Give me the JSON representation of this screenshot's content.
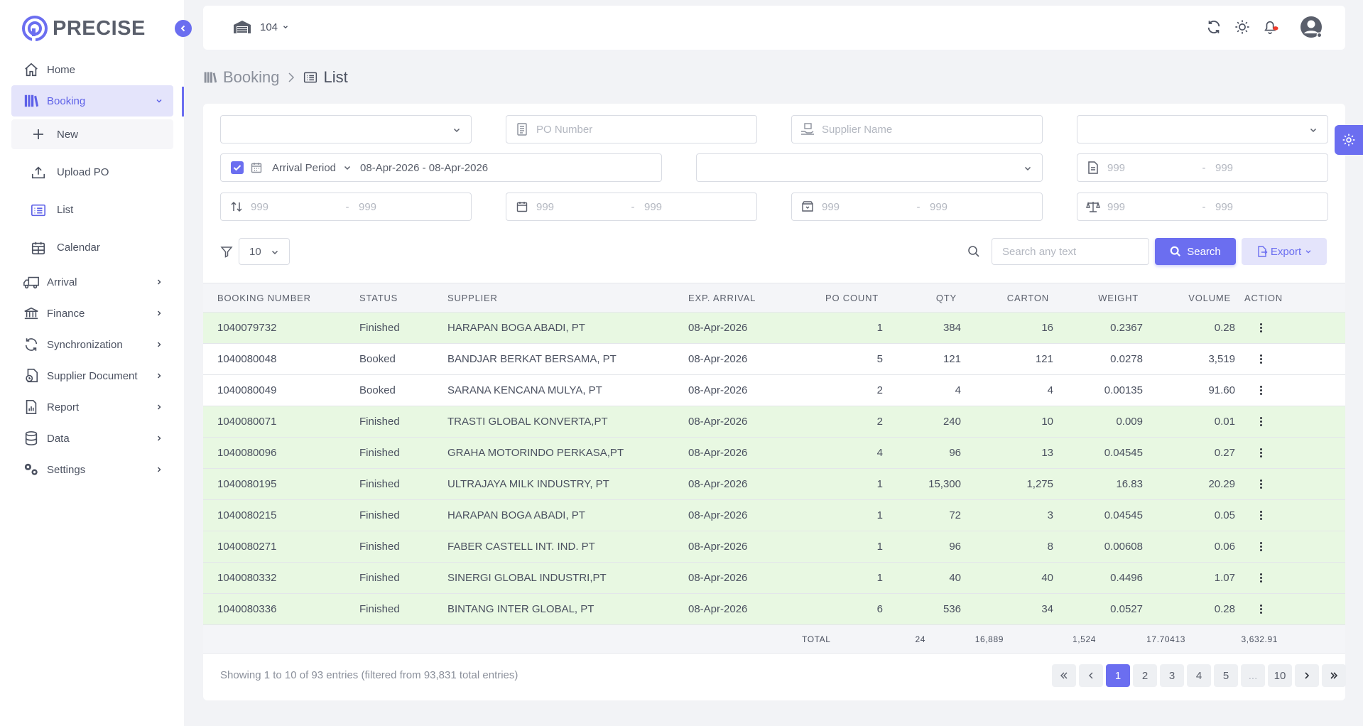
{
  "app": {
    "name": "PRECISE"
  },
  "sidebar": {
    "items": [
      {
        "label": "Home",
        "icon": "home-icon"
      },
      {
        "label": "Booking",
        "icon": "booking-icon"
      },
      {
        "label": "Arrival",
        "icon": "truck-icon"
      },
      {
        "label": "Finance",
        "icon": "bank-icon"
      },
      {
        "label": "Synchronization",
        "icon": "sync-icon"
      },
      {
        "label": "Supplier Document",
        "icon": "document-icon"
      },
      {
        "label": "Report",
        "icon": "report-icon"
      },
      {
        "label": "Data",
        "icon": "database-icon"
      },
      {
        "label": "Settings",
        "icon": "gears-icon"
      }
    ],
    "booking_sub": [
      {
        "label": "New",
        "icon": "plus-icon"
      },
      {
        "label": "Upload PO",
        "icon": "upload-icon"
      },
      {
        "label": "List",
        "icon": "list-icon"
      },
      {
        "label": "Calendar",
        "icon": "calendar-icon"
      }
    ]
  },
  "header": {
    "warehouse": "104"
  },
  "breadcrumb": {
    "parent": "Booking",
    "current": "List"
  },
  "filters": {
    "po_number_placeholder": "PO Number",
    "supplier_name_placeholder": "Supplier Name",
    "arrival_period_label": "Arrival Period",
    "arrival_period_value": "08-Apr-2026 - 08-Apr-2026",
    "range_placeholder": "999",
    "range_sep": "-"
  },
  "toolbar": {
    "page_size": "10",
    "search_placeholder": "Search any text",
    "search_label": "Search",
    "export_label": "Export"
  },
  "table": {
    "columns": [
      "BOOKING NUMBER",
      "STATUS",
      "SUPPLIER",
      "EXP. ARRIVAL",
      "PO COUNT",
      "QTY",
      "CARTON",
      "WEIGHT",
      "VOLUME",
      "ACTION"
    ],
    "rows": [
      {
        "booking": "1040079732",
        "status": "Finished",
        "supplier": "HARAPAN BOGA ABADI, PT",
        "arrival": "08-Apr-2026",
        "po": "1",
        "qty": "384",
        "carton": "16",
        "weight": "0.2367",
        "volume": "0.28"
      },
      {
        "booking": "1040080048",
        "status": "Booked",
        "supplier": "BANDJAR BERKAT BERSAMA, PT",
        "arrival": "08-Apr-2026",
        "po": "5",
        "qty": "121",
        "carton": "121",
        "weight": "0.0278",
        "volume": "3,519"
      },
      {
        "booking": "1040080049",
        "status": "Booked",
        "supplier": "SARANA KENCANA MULYA, PT",
        "arrival": "08-Apr-2026",
        "po": "2",
        "qty": "4",
        "carton": "4",
        "weight": "0.00135",
        "volume": "91.60"
      },
      {
        "booking": "1040080071",
        "status": "Finished",
        "supplier": "TRASTI GLOBAL KONVERTA,PT",
        "arrival": "08-Apr-2026",
        "po": "2",
        "qty": "240",
        "carton": "10",
        "weight": "0.009",
        "volume": "0.01"
      },
      {
        "booking": "1040080096",
        "status": "Finished",
        "supplier": "GRAHA MOTORINDO PERKASA,PT",
        "arrival": "08-Apr-2026",
        "po": "4",
        "qty": "96",
        "carton": "13",
        "weight": "0.04545",
        "volume": "0.27"
      },
      {
        "booking": "1040080195",
        "status": "Finished",
        "supplier": "ULTRAJAYA MILK INDUSTRY, PT",
        "arrival": "08-Apr-2026",
        "po": "1",
        "qty": "15,300",
        "carton": "1,275",
        "weight": "16.83",
        "volume": "20.29"
      },
      {
        "booking": "1040080215",
        "status": "Finished",
        "supplier": "HARAPAN BOGA ABADI, PT",
        "arrival": "08-Apr-2026",
        "po": "1",
        "qty": "72",
        "carton": "3",
        "weight": "0.04545",
        "volume": "0.05"
      },
      {
        "booking": "1040080271",
        "status": "Finished",
        "supplier": "FABER CASTELL INT. IND. PT",
        "arrival": "08-Apr-2026",
        "po": "1",
        "qty": "96",
        "carton": "8",
        "weight": "0.00608",
        "volume": "0.06"
      },
      {
        "booking": "1040080332",
        "status": "Finished",
        "supplier": "SINERGI GLOBAL INDUSTRI,PT",
        "arrival": "08-Apr-2026",
        "po": "1",
        "qty": "40",
        "carton": "40",
        "weight": "0.4496",
        "volume": "1.07"
      },
      {
        "booking": "1040080336",
        "status": "Finished",
        "supplier": "BINTANG INTER GLOBAL, PT",
        "arrival": "08-Apr-2026",
        "po": "6",
        "qty": "536",
        "carton": "34",
        "weight": "0.0527",
        "volume": "0.28"
      }
    ],
    "total": {
      "label": "TOTAL",
      "po": "24",
      "qty": "16,889",
      "carton": "1,524",
      "weight": "17.70413",
      "volume": "3,632.91"
    }
  },
  "pagination": {
    "info": "Showing 1 to 10 of 93 entries (filtered from 93,831 total entries)",
    "pages": [
      "1",
      "2",
      "3",
      "4",
      "5",
      "...",
      "10"
    ],
    "current": "1"
  },
  "colors": {
    "accent": "#6b6ef0",
    "finished_row": "#e8f8e2",
    "active_nav_bg": "#e4e4fb"
  }
}
